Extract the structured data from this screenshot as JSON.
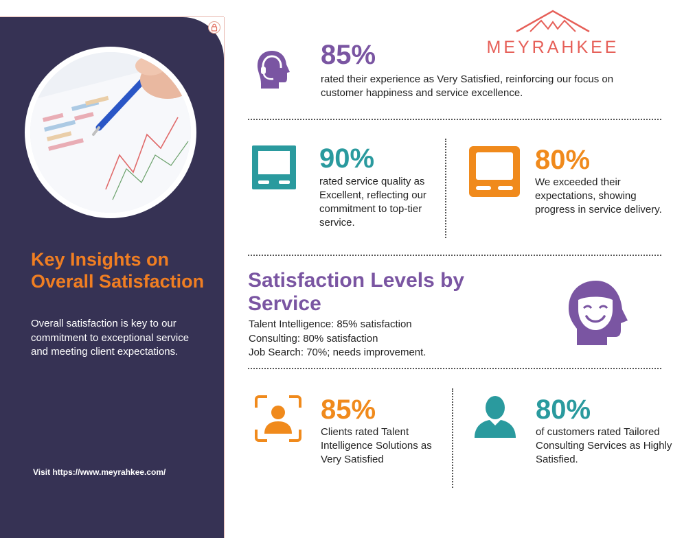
{
  "sidebar": {
    "title": "Key Insights on Overall Satisfaction",
    "text": "Overall satisfaction is key to our commitment to exceptional service and meeting client expectations.",
    "link": "Visit https://www.meyrahkee.com/"
  },
  "logo": {
    "text": "MEYRAHKEE"
  },
  "stats": {
    "s1": {
      "value": "85%",
      "text": "rated their experience as Very Satisfied, reinforcing our focus on customer happiness and service excellence."
    },
    "s2": {
      "value": "90%",
      "text": "rated service quality as Excellent, reflecting our commitment to top-tier service."
    },
    "s3": {
      "value": "80%",
      "text": "We exceeded their expectations, showing progress in service delivery."
    },
    "s4": {
      "value": "85%",
      "text": "Clients rated Talent Intelligence Solutions as Very Satisfied"
    },
    "s5": {
      "value": "80%",
      "text": "of customers rated Tailored Consulting Services as Highly Satisfied."
    }
  },
  "satisfaction": {
    "title": "Satisfaction Levels by Service",
    "items": [
      "Talent Intelligence: 85% satisfaction",
      "Consulting: 80% satisfaction",
      "Job Search: 70%; needs improvement."
    ]
  },
  "colors": {
    "purple": "#7a55a2",
    "teal": "#2a9a9e",
    "orange": "#f08a1c",
    "sidebar": "#363254",
    "title_orange": "#f07e22",
    "logo": "#e65f58"
  }
}
